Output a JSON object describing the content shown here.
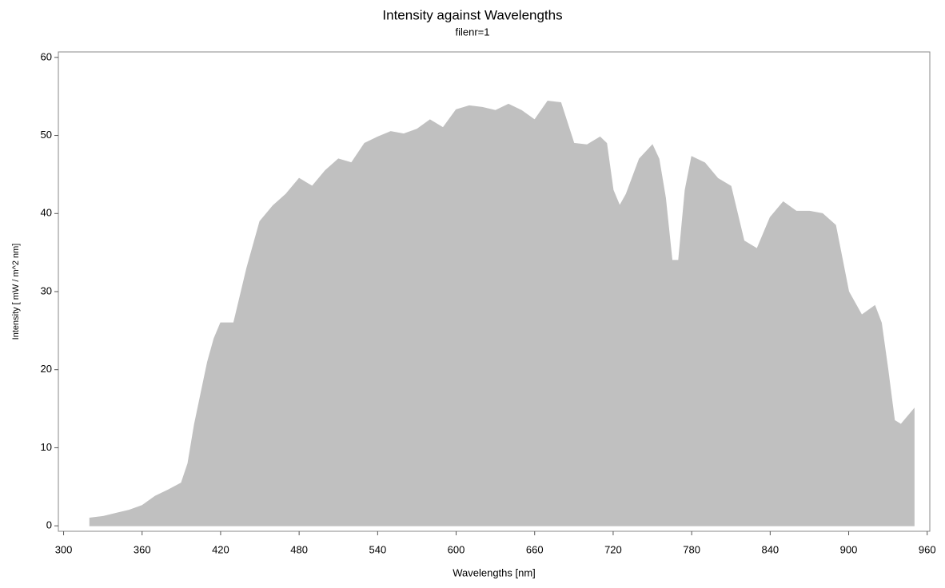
{
  "chart_data": {
    "type": "area",
    "title": "Intensity against Wavelengths",
    "subtitle": "filenr=1",
    "x_label": "Wavelengths [nm]",
    "y_label": "Intensity [ mW / m^2 nm]",
    "x": [
      320,
      330,
      340,
      350,
      360,
      370,
      380,
      390,
      395,
      400,
      405,
      410,
      415,
      420,
      430,
      440,
      450,
      460,
      470,
      480,
      490,
      500,
      510,
      520,
      530,
      540,
      550,
      560,
      570,
      580,
      590,
      600,
      610,
      620,
      630,
      640,
      650,
      660,
      670,
      680,
      690,
      700,
      710,
      715,
      720,
      725,
      730,
      740,
      750,
      755,
      760,
      765,
      770,
      775,
      780,
      790,
      800,
      810,
      820,
      830,
      840,
      850,
      860,
      870,
      880,
      890,
      900,
      910,
      920,
      925,
      930,
      935,
      940,
      950
    ],
    "series": [
      {
        "name": "Intensity",
        "color": "#c0c0c0",
        "values": [
          1,
          1.2,
          1.6,
          2,
          2.6,
          3.8,
          4.6,
          5.5,
          8,
          13,
          17,
          21,
          24,
          26,
          26,
          33,
          39,
          41,
          42.5,
          44.5,
          43.5,
          45.5,
          47,
          46.5,
          49,
          49.8,
          50.5,
          50.2,
          50.8,
          52,
          51,
          53.3,
          53.8,
          53.6,
          53.2,
          54,
          53.2,
          52,
          54.4,
          54.2,
          49,
          48.8,
          49.8,
          49,
          43,
          41,
          42.5,
          47,
          48.8,
          47,
          42,
          34,
          34,
          43,
          47.3,
          46.5,
          44.5,
          43.5,
          36.5,
          35.5,
          39.5,
          41.5,
          40.3,
          40.3,
          40,
          38.5,
          30,
          27,
          28.2,
          26,
          20,
          13.5,
          13,
          15
        ]
      }
    ],
    "xlim": [
      296,
      962
    ],
    "ylim": [
      -0.7,
      60.7
    ],
    "xticks": [
      300,
      360,
      420,
      480,
      540,
      600,
      660,
      720,
      780,
      840,
      900,
      960
    ],
    "yticks": [
      0,
      10,
      20,
      30,
      40,
      50,
      60
    ]
  }
}
